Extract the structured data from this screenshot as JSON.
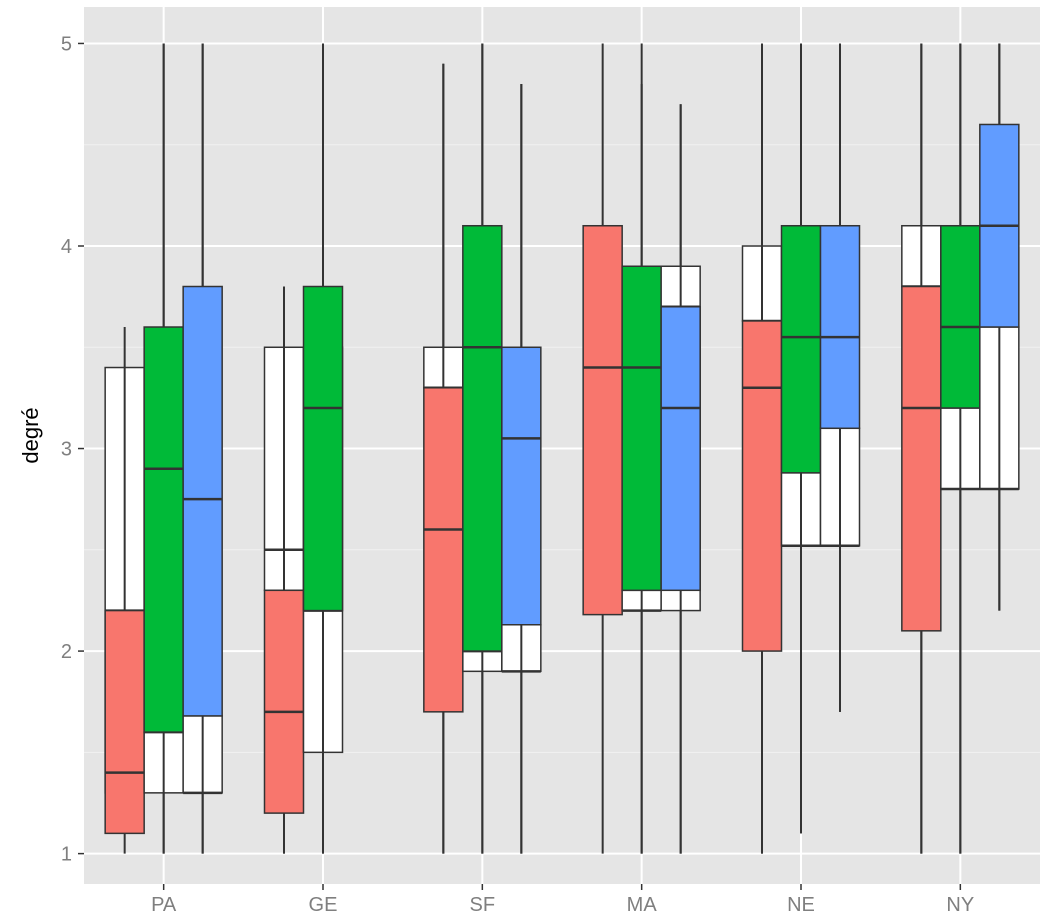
{
  "chart_data": {
    "type": "boxplot",
    "ylabel": "degré",
    "xlabel": "",
    "categories": [
      "PA",
      "GE",
      "SF",
      "MA",
      "NE",
      "NY"
    ],
    "yticks": [
      "1",
      "2",
      "3",
      "4",
      "5"
    ],
    "ylim": [
      0.85,
      5.18
    ],
    "grid": true,
    "legend": "none",
    "colors": {
      "panel": "#e5e5e5",
      "grid": "#ffffff",
      "outline": "#333333",
      "tick_text": "#7f7f7f",
      "white_box": "#ffffff",
      "red": "#f8766d",
      "green": "#00ba38",
      "blue": "#619cff"
    },
    "boxes": [
      {
        "category": "PA",
        "group": 1,
        "fill": "white",
        "min": 1.3,
        "q1": 1.3,
        "median": 2.2,
        "q3": 3.4,
        "max": 3.4
      },
      {
        "category": "PA",
        "group": 1,
        "fill": "red",
        "min": 1.0,
        "q1": 1.1,
        "median": 1.4,
        "q3": 2.2,
        "max": 3.6
      },
      {
        "category": "PA",
        "group": 2,
        "fill": "white",
        "min": 1.0,
        "q1": 1.3,
        "median": 1.6,
        "q3": 1.6,
        "max": 5.0
      },
      {
        "category": "PA",
        "group": 2,
        "fill": "green",
        "min": 1.0,
        "q1": 1.6,
        "median": 2.9,
        "q3": 3.6,
        "max": 5.0
      },
      {
        "category": "PA",
        "group": 3,
        "fill": "white",
        "min": 1.0,
        "q1": 1.3,
        "median": 1.3,
        "q3": 1.68,
        "max": 5.0
      },
      {
        "category": "PA",
        "group": 3,
        "fill": "blue",
        "min": 1.0,
        "q1": 1.68,
        "median": 2.75,
        "q3": 3.8,
        "max": 5.0
      },
      {
        "category": "GE",
        "group": 1,
        "fill": "white",
        "min": 1.0,
        "q1": 2.3,
        "median": 2.5,
        "q3": 3.5,
        "max": 3.8
      },
      {
        "category": "GE",
        "group": 1,
        "fill": "red",
        "min": 1.0,
        "q1": 1.2,
        "median": 1.7,
        "q3": 2.3,
        "max": 3.8
      },
      {
        "category": "GE",
        "group": 2,
        "fill": "white",
        "min": 1.0,
        "q1": 1.5,
        "median": 2.2,
        "q3": 3.5,
        "max": 5.0
      },
      {
        "category": "GE",
        "group": 2,
        "fill": "green",
        "min": 1.0,
        "q1": 2.2,
        "median": 3.2,
        "q3": 3.8,
        "max": 5.0
      },
      {
        "category": "SF",
        "group": 1,
        "fill": "white",
        "min": 1.0,
        "q1": 3.3,
        "median": 3.3,
        "q3": 3.5,
        "max": 4.9
      },
      {
        "category": "SF",
        "group": 1,
        "fill": "red",
        "min": 1.0,
        "q1": 1.7,
        "median": 2.6,
        "q3": 3.3,
        "max": 4.9
      },
      {
        "category": "SF",
        "group": 2,
        "fill": "white",
        "min": 1.0,
        "q1": 1.9,
        "median": 2.0,
        "q3": 2.0,
        "max": 5.0
      },
      {
        "category": "SF",
        "group": 2,
        "fill": "green",
        "min": 1.0,
        "q1": 2.0,
        "median": 3.5,
        "q3": 4.1,
        "max": 5.0
      },
      {
        "category": "SF",
        "group": 3,
        "fill": "white",
        "min": 1.0,
        "q1": 1.9,
        "median": 1.9,
        "q3": 2.13,
        "max": 4.8
      },
      {
        "category": "SF",
        "group": 3,
        "fill": "blue",
        "min": 1.0,
        "q1": 2.13,
        "median": 3.05,
        "q3": 3.5,
        "max": 4.8
      },
      {
        "category": "MA",
        "group": 1,
        "fill": "red",
        "min": 1.0,
        "q1": 2.18,
        "median": 3.4,
        "q3": 4.1,
        "max": 5.0
      },
      {
        "category": "MA",
        "group": 2,
        "fill": "white",
        "min": 1.0,
        "q1": 2.2,
        "median": 2.2,
        "q3": 2.3,
        "max": 4.8
      },
      {
        "category": "MA",
        "group": 2,
        "fill": "green",
        "min": 1.0,
        "q1": 2.3,
        "median": 3.4,
        "q3": 3.9,
        "max": 5.0
      },
      {
        "category": "MA",
        "group": 3,
        "fill": "white",
        "min": 1.0,
        "q1": 2.2,
        "median": 3.7,
        "q3": 3.9,
        "max": 4.7
      },
      {
        "category": "MA",
        "group": 3,
        "fill": "blue",
        "min": 1.0,
        "q1": 2.3,
        "median": 3.2,
        "q3": 3.7,
        "max": 4.7
      },
      {
        "category": "NE",
        "group": 1,
        "fill": "white",
        "min": 1.0,
        "q1": 3.63,
        "median": 3.63,
        "q3": 4.0,
        "max": 5.0
      },
      {
        "category": "NE",
        "group": 1,
        "fill": "red",
        "min": 1.0,
        "q1": 2.0,
        "median": 3.3,
        "q3": 3.63,
        "max": 5.0
      },
      {
        "category": "NE",
        "group": 2,
        "fill": "white",
        "min": 1.1,
        "q1": 2.52,
        "median": 2.52,
        "q3": 2.88,
        "max": 5.0
      },
      {
        "category": "NE",
        "group": 2,
        "fill": "green",
        "min": 1.1,
        "q1": 2.88,
        "median": 3.55,
        "q3": 4.1,
        "max": 5.0
      },
      {
        "category": "NE",
        "group": 3,
        "fill": "white",
        "min": 1.7,
        "q1": 2.52,
        "median": 2.52,
        "q3": 3.1,
        "max": 5.0
      },
      {
        "category": "NE",
        "group": 3,
        "fill": "blue",
        "min": 1.7,
        "q1": 3.1,
        "median": 3.55,
        "q3": 4.1,
        "max": 5.0
      },
      {
        "category": "NY",
        "group": 1,
        "fill": "white",
        "min": 1.0,
        "q1": 3.8,
        "median": 3.8,
        "q3": 4.1,
        "max": 5.0
      },
      {
        "category": "NY",
        "group": 1,
        "fill": "red",
        "min": 1.0,
        "q1": 2.1,
        "median": 3.2,
        "q3": 3.8,
        "max": 5.0
      },
      {
        "category": "NY",
        "group": 2,
        "fill": "white",
        "min": 1.0,
        "q1": 2.8,
        "median": 2.8,
        "q3": 3.2,
        "max": 5.0
      },
      {
        "category": "NY",
        "group": 2,
        "fill": "green",
        "min": 1.0,
        "q1": 3.2,
        "median": 3.6,
        "q3": 4.1,
        "max": 5.0
      },
      {
        "category": "NY",
        "group": 3,
        "fill": "white",
        "min": 2.2,
        "q1": 2.8,
        "median": 2.8,
        "q3": 3.6,
        "max": 5.0
      },
      {
        "category": "NY",
        "group": 3,
        "fill": "blue",
        "min": 2.2,
        "q1": 3.6,
        "median": 4.1,
        "q3": 4.6,
        "max": 5.0
      }
    ]
  }
}
